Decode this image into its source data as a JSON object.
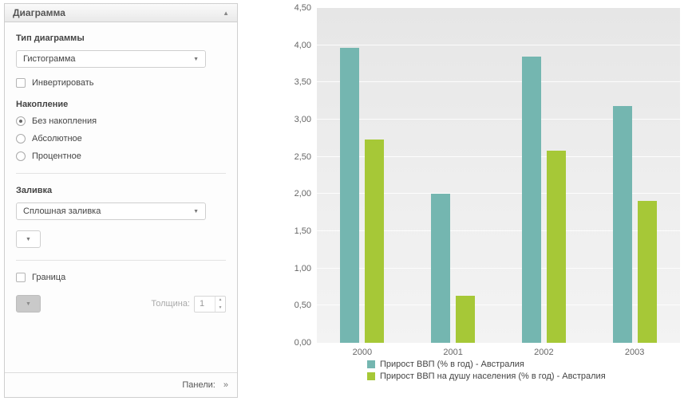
{
  "icons": {
    "dropdown_arrow": "▼",
    "collapse_arrow": "▲",
    "panels_chevrons": "»",
    "spin_up": "▲",
    "spin_down": "▼"
  },
  "panel": {
    "title": "Диаграмма",
    "chart_type_label": "Тип диаграммы",
    "chart_type_value": "Гистограмма",
    "invert_label": "Инвертировать",
    "stacking_label": "Накопление",
    "stacking_options": [
      {
        "label": "Без накопления",
        "selected": true
      },
      {
        "label": "Абсолютное",
        "selected": false
      },
      {
        "label": "Процентное",
        "selected": false
      }
    ],
    "fill_label": "Заливка",
    "fill_value": "Сплошная заливка",
    "border_label": "Граница",
    "thickness_label": "Толщина:",
    "thickness_value": "1",
    "footer_label": "Панели:"
  },
  "chart_data": {
    "type": "bar",
    "categories": [
      "2000",
      "2001",
      "2002",
      "2003"
    ],
    "series": [
      {
        "name": "Прирост ВВП (% в год) - Австралия",
        "color": "#74b6b0",
        "values": [
          3.96,
          2.0,
          3.85,
          3.18
        ]
      },
      {
        "name": "Прирост ВВП на душу населения (% в год) - Австралия",
        "color": "#a6c837",
        "values": [
          2.73,
          0.63,
          2.58,
          1.91
        ]
      }
    ],
    "ylim": [
      0,
      4.5
    ],
    "ytick_step": 0.5,
    "ytick_labels": [
      "0,00",
      "0,50",
      "1,00",
      "1,50",
      "2,00",
      "2,50",
      "3,00",
      "3,50",
      "4,00",
      "4,50"
    ],
    "grid": true,
    "legend_position": "bottom-left"
  }
}
